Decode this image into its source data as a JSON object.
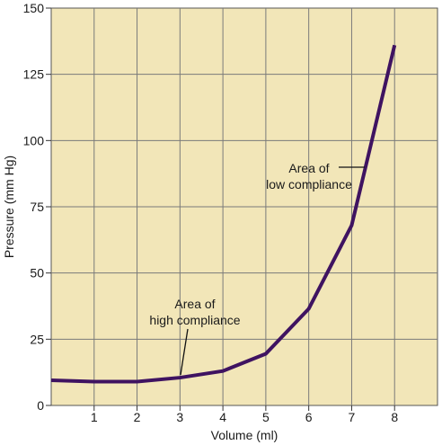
{
  "chart_data": {
    "type": "line",
    "title": "",
    "xlabel": "Volume (ml)",
    "ylabel": "Pressure (mm Hg)",
    "xlim": [
      0,
      9
    ],
    "ylim": [
      0,
      150
    ],
    "x_ticks": [
      1,
      2,
      3,
      4,
      5,
      6,
      7,
      8
    ],
    "y_ticks": [
      0,
      25,
      50,
      75,
      100,
      125,
      150
    ],
    "grid": true,
    "plot_background": "#f2e6b8",
    "grid_color": "#7a7a7a",
    "line_color": "#3f1361",
    "series": [
      {
        "x": [
          0,
          1,
          2,
          3,
          4,
          5,
          6,
          7,
          8
        ],
        "y": [
          9.5,
          9,
          9,
          10.5,
          13,
          19.5,
          36.5,
          68,
          136
        ]
      }
    ],
    "annotations": [
      {
        "text": [
          "Area of",
          "high compliance"
        ]
      },
      {
        "text": [
          "Area of",
          "low compliance"
        ]
      }
    ]
  }
}
